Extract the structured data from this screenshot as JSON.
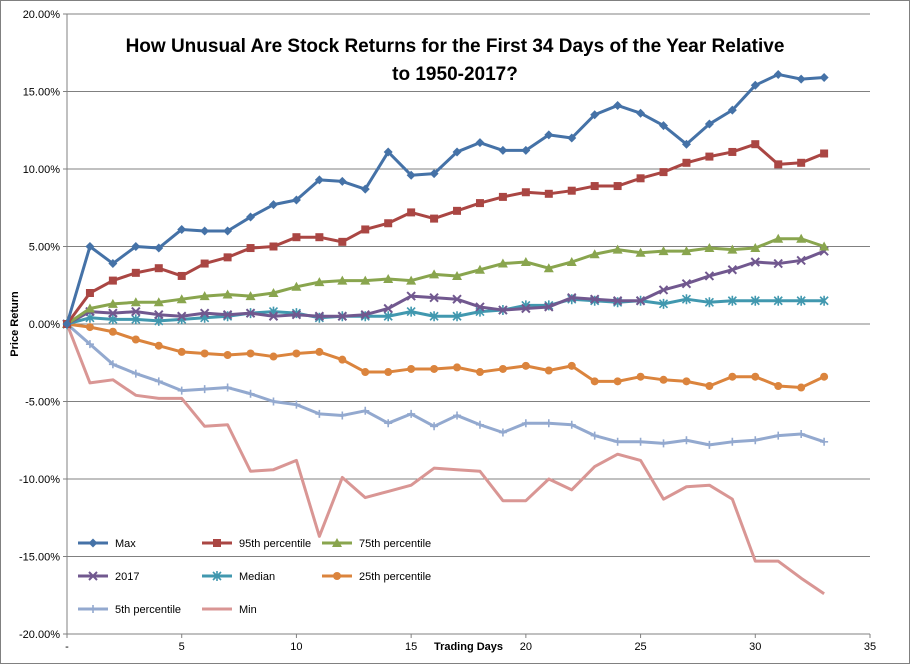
{
  "chart_data": {
    "type": "line",
    "title_lines": [
      "How Unusual Are Stock Returns for the First 34 Days of the Year Relative",
      "to 1950-2017?"
    ],
    "xlabel": "Trading Days",
    "ylabel": "Price Return",
    "xlim": [
      0,
      35
    ],
    "ylim": [
      -20,
      20
    ],
    "x_ticks": [
      "-",
      "5",
      "10",
      "15",
      "20",
      "25",
      "30",
      "35"
    ],
    "x_tick_values": [
      0,
      5,
      10,
      15,
      20,
      25,
      30,
      35
    ],
    "y_ticks": [
      "20.00%",
      "15.00%",
      "10.00%",
      "5.00%",
      "0.00%",
      "-5.00%",
      "-10.00%",
      "-15.00%",
      "-20.00%"
    ],
    "y_tick_values": [
      20,
      15,
      10,
      5,
      0,
      -5,
      -10,
      -15,
      -20
    ],
    "grid": "horizontal",
    "legend_position": "bottom-left",
    "series": [
      {
        "name": "Max",
        "color": "#4572A7",
        "marker": "diamond",
        "values": [
          0,
          5.0,
          3.9,
          5.0,
          4.9,
          6.1,
          6.0,
          6.0,
          6.9,
          7.7,
          8.0,
          9.3,
          9.2,
          8.7,
          11.1,
          9.6,
          9.7,
          11.1,
          11.7,
          11.2,
          11.2,
          12.2,
          12.0,
          13.5,
          14.1,
          13.6,
          12.8,
          11.6,
          12.9,
          13.8,
          15.4,
          16.1,
          15.8,
          15.9
        ]
      },
      {
        "name": "95th percentile",
        "color": "#AA4643",
        "marker": "square",
        "values": [
          0,
          2.0,
          2.8,
          3.3,
          3.6,
          3.1,
          3.9,
          4.3,
          4.9,
          5.0,
          5.6,
          5.6,
          5.3,
          6.1,
          6.5,
          7.2,
          6.8,
          7.3,
          7.8,
          8.2,
          8.5,
          8.4,
          8.6,
          8.9,
          8.9,
          9.4,
          9.8,
          10.4,
          10.8,
          11.1,
          11.6,
          10.3,
          10.4,
          11.0
        ]
      },
      {
        "name": "75th percentile",
        "color": "#89A54E",
        "marker": "triangle",
        "values": [
          0,
          1.0,
          1.3,
          1.4,
          1.4,
          1.6,
          1.8,
          1.9,
          1.8,
          2.0,
          2.4,
          2.7,
          2.8,
          2.8,
          2.9,
          2.8,
          3.2,
          3.1,
          3.5,
          3.9,
          4.0,
          3.6,
          4.0,
          4.5,
          4.8,
          4.6,
          4.7,
          4.7,
          4.9,
          4.8,
          4.9,
          5.5,
          5.5,
          5.0
        ]
      },
      {
        "name": "2017",
        "color": "#71588F",
        "marker": "x",
        "values": [
          0,
          0.8,
          0.7,
          0.8,
          0.6,
          0.5,
          0.7,
          0.6,
          0.7,
          0.5,
          0.6,
          0.5,
          0.5,
          0.6,
          1.0,
          1.8,
          1.7,
          1.6,
          1.1,
          0.9,
          1.0,
          1.1,
          1.7,
          1.6,
          1.5,
          1.5,
          2.2,
          2.6,
          3.1,
          3.5,
          4.0,
          3.9,
          4.1,
          4.7
        ]
      },
      {
        "name": "Median",
        "color": "#4198AF",
        "marker": "asterisk",
        "values": [
          0,
          0.4,
          0.3,
          0.3,
          0.2,
          0.3,
          0.4,
          0.5,
          0.7,
          0.8,
          0.7,
          0.4,
          0.5,
          0.5,
          0.5,
          0.8,
          0.5,
          0.5,
          0.8,
          0.9,
          1.2,
          1.2,
          1.6,
          1.5,
          1.4,
          1.5,
          1.3,
          1.6,
          1.4,
          1.5,
          1.5,
          1.5,
          1.5,
          1.5
        ]
      },
      {
        "name": "25th percentile",
        "color": "#DB843D",
        "marker": "circle",
        "values": [
          0,
          -0.2,
          -0.5,
          -1.0,
          -1.4,
          -1.8,
          -1.9,
          -2.0,
          -1.9,
          -2.1,
          -1.9,
          -1.8,
          -2.3,
          -3.1,
          -3.1,
          -2.9,
          -2.9,
          -2.8,
          -3.1,
          -2.9,
          -2.7,
          -3.0,
          -2.7,
          -3.7,
          -3.7,
          -3.4,
          -3.6,
          -3.7,
          -4.0,
          -3.4,
          -3.4,
          -4.0,
          -4.1,
          -3.4
        ]
      },
      {
        "name": "5th percentile",
        "color": "#93A9CF",
        "marker": "plus",
        "values": [
          0,
          -1.3,
          -2.6,
          -3.2,
          -3.7,
          -4.3,
          -4.2,
          -4.1,
          -4.5,
          -5.0,
          -5.2,
          -5.8,
          -5.9,
          -5.6,
          -6.4,
          -5.8,
          -6.6,
          -5.9,
          -6.5,
          -7.0,
          -6.4,
          -6.4,
          -6.5,
          -7.2,
          -7.6,
          -7.6,
          -7.7,
          -7.5,
          -7.8,
          -7.6,
          -7.5,
          -7.2,
          -7.1,
          -7.6
        ]
      },
      {
        "name": "Min",
        "color": "#D99694",
        "marker": "none",
        "values": [
          0,
          -3.8,
          -3.6,
          -4.6,
          -4.8,
          -4.8,
          -6.6,
          -6.5,
          -9.5,
          -9.4,
          -8.8,
          -13.7,
          -9.9,
          -11.2,
          -10.8,
          -10.4,
          -9.3,
          -9.4,
          -9.5,
          -11.4,
          -11.4,
          -10.0,
          -10.7,
          -9.2,
          -8.4,
          -8.8,
          -11.3,
          -10.5,
          -10.4,
          -11.3,
          -15.3,
          -15.3,
          -16.4,
          -17.4
        ]
      }
    ]
  }
}
